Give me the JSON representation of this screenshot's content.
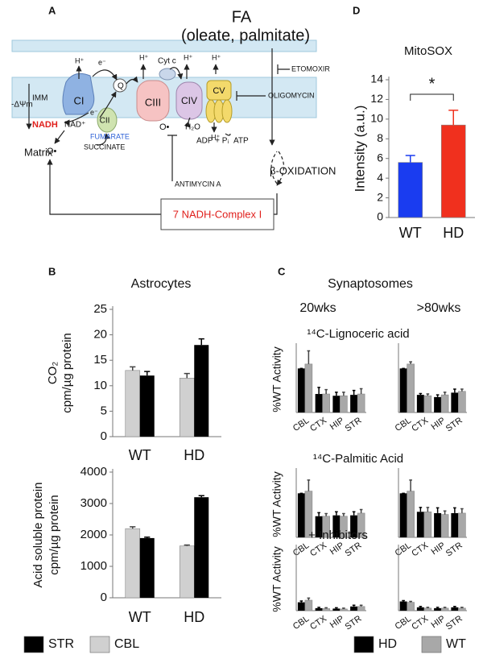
{
  "panel_labels": [
    "A",
    "B",
    "C",
    "D"
  ],
  "diagram": {
    "title": "FA",
    "subtitle": "(oleate, palmitate)",
    "complexes": [
      "CI",
      "CII",
      "CIII",
      "CIV",
      "CV"
    ],
    "box": "7 NADH-Complex I",
    "labels": [
      "ETOMOXIR",
      "OLIGOMYCIN",
      "ANTIMYCIN A",
      "β-OXIDATION",
      "Matrix",
      "IMM",
      "-ΔΨm",
      "NADH",
      "NAD⁺",
      "O•",
      "SUCCINATE",
      "FUMARATE",
      "O•",
      "H₂O",
      "ADP + Pᵢ",
      "ATP",
      "H⁺",
      "H⁺",
      "H⁺",
      "H⁺",
      "H⁺",
      "e⁻",
      "e⁻",
      "Cyt c",
      "Q"
    ]
  },
  "panel_c": {
    "title": "Synaptosomes"
  },
  "chart_data": [
    {
      "type": "bar",
      "title": "MitoSOX",
      "y_label": "Intensity (a.u.)",
      "categories": [
        "WT",
        "HD"
      ],
      "values": [
        5.6,
        9.4
      ],
      "errors": [
        0.7,
        1.5
      ],
      "colors": [
        "#1a3cf0",
        "#f0301e"
      ],
      "ylim": [
        0,
        14
      ],
      "yticks": [
        0,
        2,
        4,
        6,
        8,
        10,
        12,
        14
      ],
      "annotation": "*"
    },
    {
      "type": "bar",
      "title": "Astrocytes",
      "y_label": [
        "CO₂",
        "cpm/µg protein"
      ],
      "categories": [
        "WT",
        "HD"
      ],
      "series": [
        {
          "name": "CBL",
          "color": "#d0d0d0",
          "values": [
            13,
            11.5
          ],
          "errors": [
            0.7,
            0.9
          ]
        },
        {
          "name": "STR",
          "color": "#000000",
          "values": [
            12,
            18
          ],
          "errors": [
            0.8,
            1.2
          ]
        }
      ],
      "ylim": [
        0,
        25
      ],
      "yticks": [
        0,
        5,
        10,
        15,
        20,
        25
      ]
    },
    {
      "type": "bar",
      "y_label": [
        "Acid soluble protein",
        "cpm/µg protein"
      ],
      "categories": [
        "WT",
        "HD"
      ],
      "series": [
        {
          "name": "CBL",
          "color": "#d0d0d0",
          "values": [
            2200,
            1650
          ],
          "errors": [
            60,
            30
          ]
        },
        {
          "name": "STR",
          "color": "#000000",
          "values": [
            1900,
            3200
          ],
          "errors": [
            30,
            50
          ]
        }
      ],
      "ylim": [
        0,
        4000
      ],
      "yticks": [
        0,
        1000,
        2000,
        3000,
        4000
      ]
    },
    {
      "type": "bar",
      "subtitle": "20wks",
      "title": "¹⁴C-Lignoceric acid",
      "y_label": "%WT Activity",
      "categories": [
        "CBL",
        "CTX",
        "HIP",
        "STR"
      ],
      "series": [
        {
          "name": "HD",
          "color": "#000000",
          "values": [
            100,
            42,
            38,
            40
          ],
          "errors": [
            0,
            15,
            8,
            10
          ]
        },
        {
          "name": "WT",
          "color": "#a8a8a8",
          "values": [
            110,
            42,
            38,
            42
          ],
          "errors": [
            30,
            10,
            8,
            12
          ]
        }
      ],
      "ylim": [
        0,
        150
      ]
    },
    {
      "type": "bar",
      "subtitle": ">80wks",
      "categories": [
        "CBL",
        "CTX",
        "HIP",
        "STR"
      ],
      "series": [
        {
          "name": "HD",
          "color": "#000000",
          "values": [
            100,
            40,
            35,
            45
          ],
          "errors": [
            0,
            3,
            5,
            8
          ]
        },
        {
          "name": "WT",
          "color": "#a8a8a8",
          "values": [
            110,
            38,
            40,
            48
          ],
          "errors": [
            5,
            4,
            6,
            5
          ]
        }
      ],
      "ylim": [
        0,
        150
      ]
    },
    {
      "type": "bar",
      "title": "¹⁴C-Palmitic  Acid",
      "y_label": "%WT Activity",
      "categories": [
        "CBL",
        "CTX",
        "HIP",
        "STR"
      ],
      "series": [
        {
          "name": "HD",
          "color": "#000000",
          "values": [
            100,
            48,
            50,
            50
          ],
          "errors": [
            0,
            8,
            8,
            8
          ]
        },
        {
          "name": "WT",
          "color": "#a8a8a8",
          "values": [
            105,
            48,
            48,
            55
          ],
          "errors": [
            25,
            6,
            6,
            8
          ]
        }
      ],
      "ylim": [
        0,
        150
      ]
    },
    {
      "type": "bar",
      "categories": [
        "CBL",
        "CTX",
        "HIP",
        "STR"
      ],
      "series": [
        {
          "name": "HD",
          "color": "#000000",
          "values": [
            100,
            58,
            55,
            55
          ],
          "errors": [
            0,
            10,
            12,
            12
          ]
        },
        {
          "name": "WT",
          "color": "#a8a8a8",
          "values": [
            105,
            58,
            52,
            55
          ],
          "errors": [
            25,
            10,
            8,
            10
          ]
        }
      ],
      "ylim": [
        0,
        150
      ]
    },
    {
      "type": "bar",
      "title": "+ Inhibitors",
      "y_label": "%WT Activity",
      "categories": [
        "CBL",
        "CTX",
        "HIP",
        "STR"
      ],
      "series": [
        {
          "name": "HD",
          "color": "#000000",
          "values": [
            20,
            6,
            5,
            10
          ],
          "errors": [
            3,
            2,
            2,
            3
          ]
        },
        {
          "name": "WT",
          "color": "#a8a8a8",
          "values": [
            25,
            5,
            4,
            10
          ],
          "errors": [
            5,
            2,
            2,
            3
          ]
        }
      ],
      "ylim": [
        0,
        150
      ]
    },
    {
      "type": "bar",
      "categories": [
        "CBL",
        "CTX",
        "HIP",
        "STR"
      ],
      "series": [
        {
          "name": "HD",
          "color": "#000000",
          "values": [
            22,
            8,
            6,
            8
          ],
          "errors": [
            2,
            2,
            2,
            2
          ]
        },
        {
          "name": "WT",
          "color": "#a8a8a8",
          "values": [
            20,
            6,
            6,
            6
          ],
          "errors": [
            2,
            2,
            2,
            2
          ]
        }
      ],
      "ylim": [
        0,
        150
      ]
    }
  ]
}
